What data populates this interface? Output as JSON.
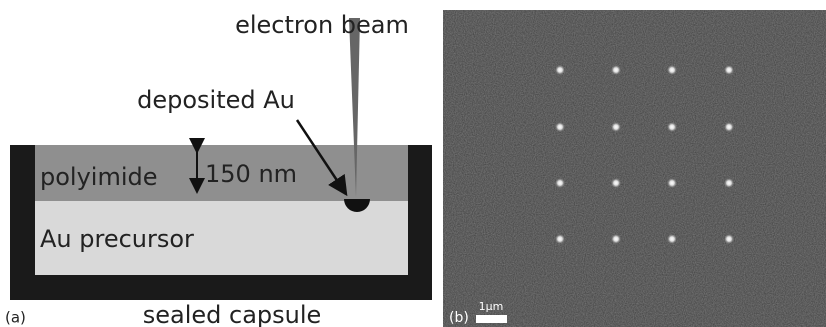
{
  "panel_a": {
    "label": "(a)",
    "beam": "electron beam",
    "deposit": "deposited Au",
    "layer_top": "polyimide",
    "thickness": "150 nm",
    "layer_bottom": "Au precursor",
    "container": "sealed capsule"
  },
  "panel_b": {
    "label": "(b)",
    "scale": "1μm"
  }
}
